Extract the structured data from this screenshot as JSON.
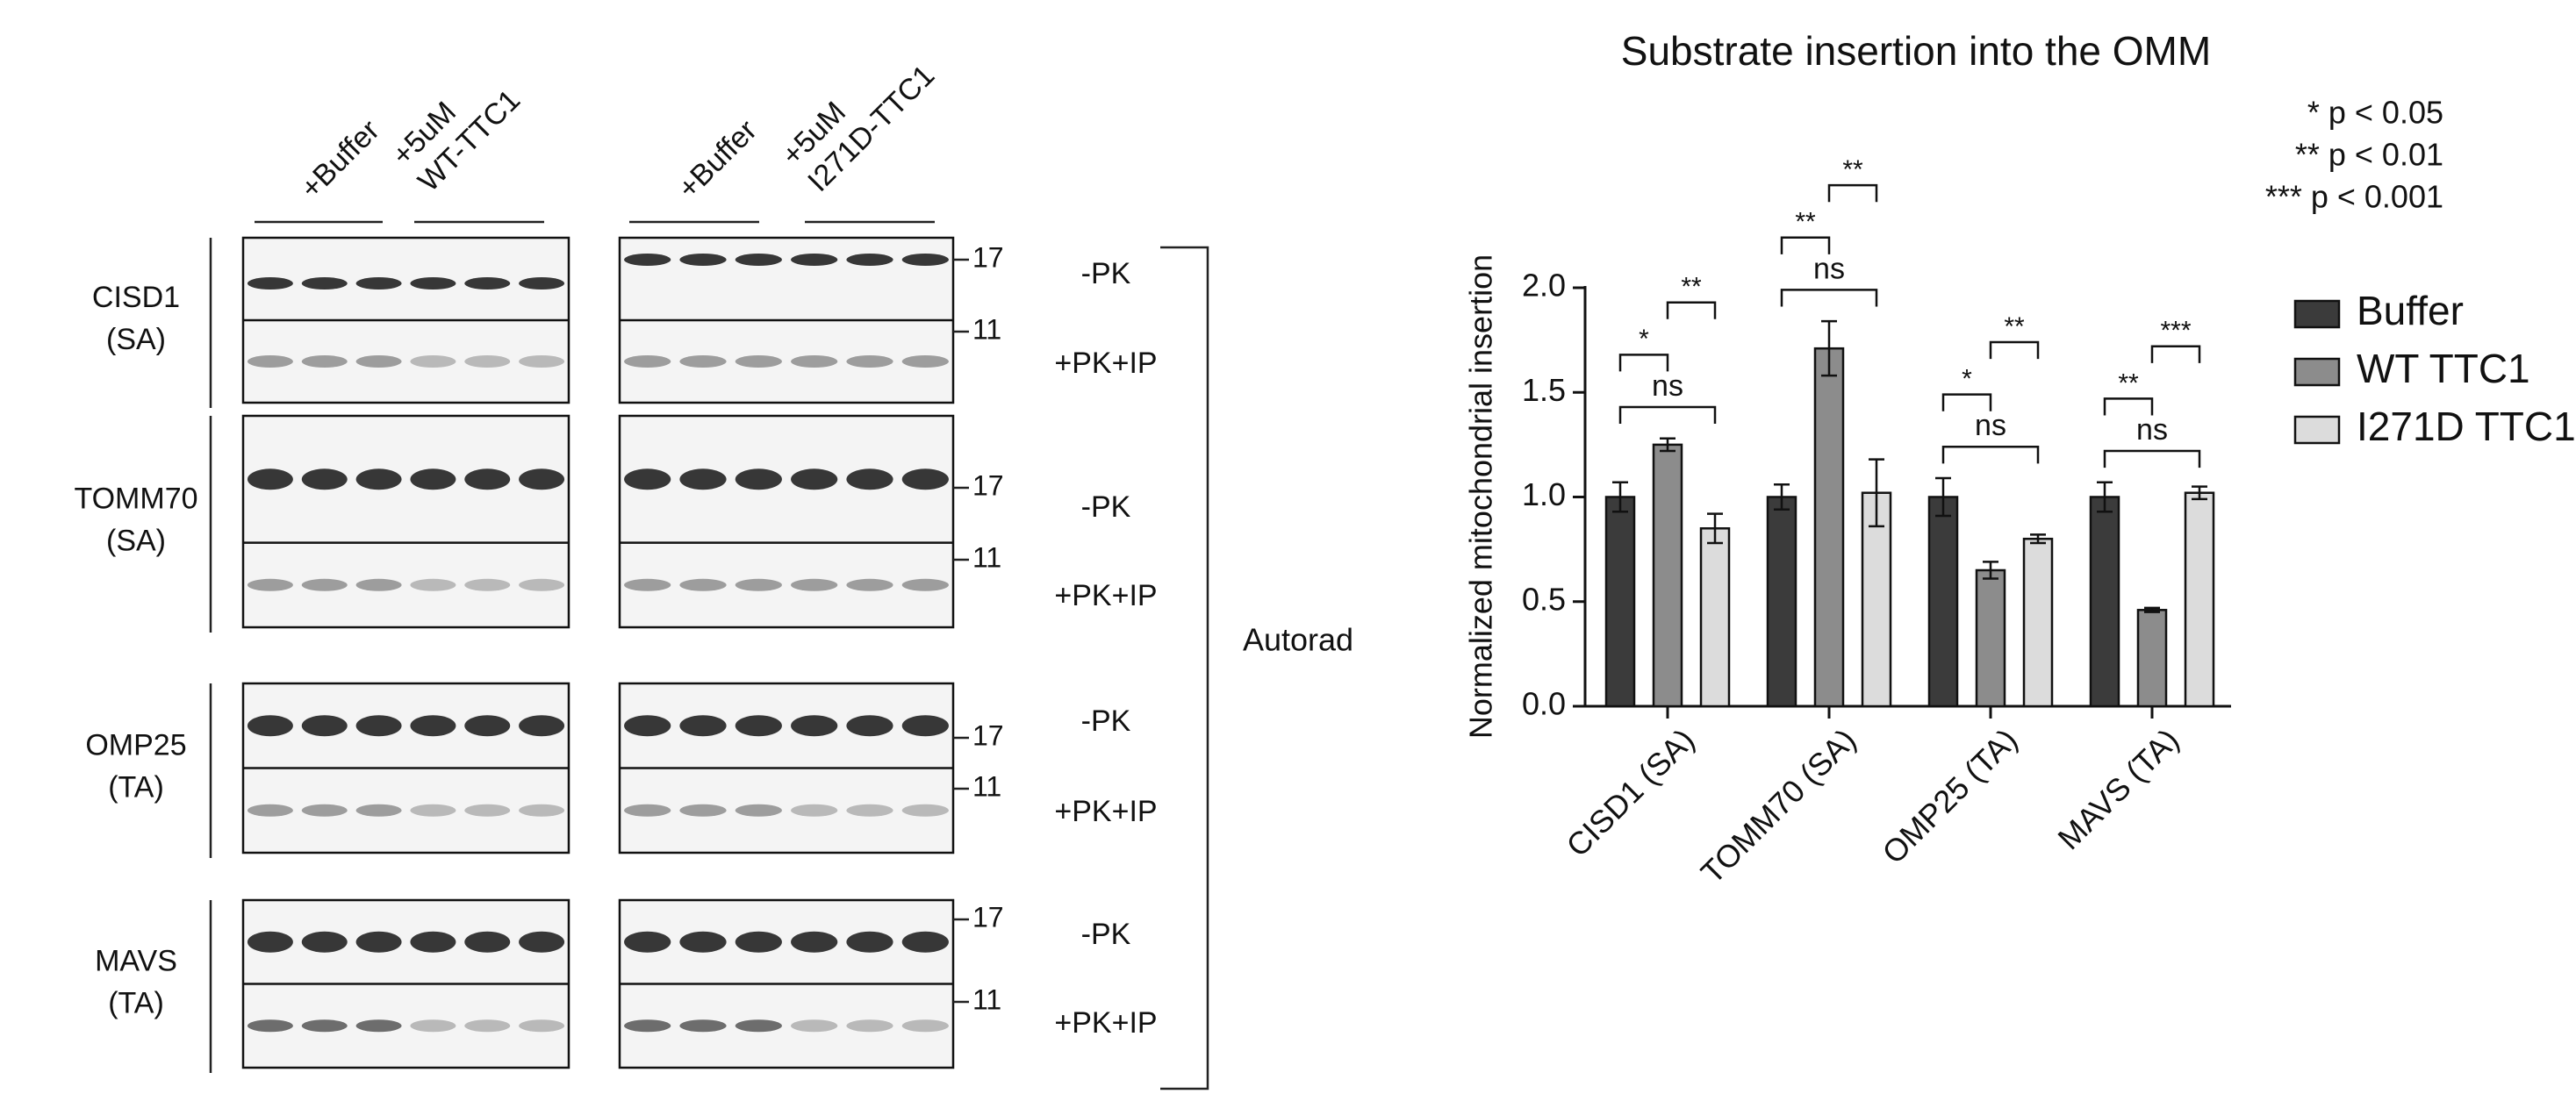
{
  "blot": {
    "conditions": [
      {
        "lines": [
          "+Buffer"
        ]
      },
      {
        "lines": [
          "+5uM",
          "WT-TTC1"
        ]
      },
      {
        "lines": [
          "+Buffer"
        ]
      },
      {
        "lines": [
          "+5uM",
          "I271D-TTC1"
        ]
      }
    ],
    "proteins": [
      {
        "name": "CISD1",
        "topology": "(SA)"
      },
      {
        "name": "TOMM70",
        "topology": "(SA)"
      },
      {
        "name": "OMP25",
        "topology": "(TA)"
      },
      {
        "name": "MAVS",
        "topology": "(TA)"
      }
    ],
    "treatments": [
      "-PK",
      "+PK+IP"
    ],
    "markers": [
      "17",
      "11"
    ],
    "detection": "Autorad"
  },
  "chart_data": {
    "type": "bar",
    "title": "Substrate insertion into the OMM",
    "y_label": "Normalized mitochondrial insertion",
    "categories": [
      "CISD1 (SA)",
      "TOMM70 (SA)",
      "OMP25 (TA)",
      "MAVS (TA)"
    ],
    "series": [
      {
        "name": "Buffer",
        "color": "#3b3b3b",
        "values": [
          1.0,
          1.0,
          1.0,
          1.0
        ],
        "errors": [
          0.07,
          0.06,
          0.09,
          0.07
        ]
      },
      {
        "name": "WT TTC1",
        "color": "#8c8c8c",
        "values": [
          1.25,
          1.71,
          0.65,
          0.46
        ],
        "errors": [
          0.03,
          0.13,
          0.04,
          0.01
        ]
      },
      {
        "name": "I271D TTC1",
        "color": "#dcdcdc",
        "values": [
          0.85,
          1.02,
          0.8,
          1.02
        ],
        "errors": [
          0.07,
          0.16,
          0.02,
          0.03
        ]
      }
    ],
    "ylim": [
      0,
      2.0
    ],
    "yticks": [
      {
        "value": 0,
        "label": "0.0"
      },
      {
        "value": 0.5,
        "label": "0.5"
      },
      {
        "value": 1.0,
        "label": "1.0"
      },
      {
        "value": 1.5,
        "label": "1.5"
      },
      {
        "value": 2.0,
        "label": "2.0"
      }
    ],
    "legend": "right",
    "significance_key": [
      "* p < 0.05",
      "** p < 0.01",
      "*** p < 0.001"
    ],
    "annotations": [
      [
        {
          "between": [
            0,
            2
          ],
          "text": "ns"
        },
        {
          "between": [
            0,
            1
          ],
          "text": "*"
        },
        {
          "between": [
            1,
            2
          ],
          "text": "**"
        }
      ],
      [
        {
          "between": [
            0,
            2
          ],
          "text": "ns"
        },
        {
          "between": [
            0,
            1
          ],
          "text": "**"
        },
        {
          "between": [
            1,
            2
          ],
          "text": "**"
        }
      ],
      [
        {
          "between": [
            0,
            2
          ],
          "text": "ns"
        },
        {
          "between": [
            0,
            1
          ],
          "text": "*"
        },
        {
          "between": [
            1,
            2
          ],
          "text": "**"
        }
      ],
      [
        {
          "between": [
            0,
            2
          ],
          "text": "ns"
        },
        {
          "between": [
            0,
            1
          ],
          "text": "**"
        },
        {
          "between": [
            1,
            2
          ],
          "text": "***"
        }
      ]
    ]
  }
}
